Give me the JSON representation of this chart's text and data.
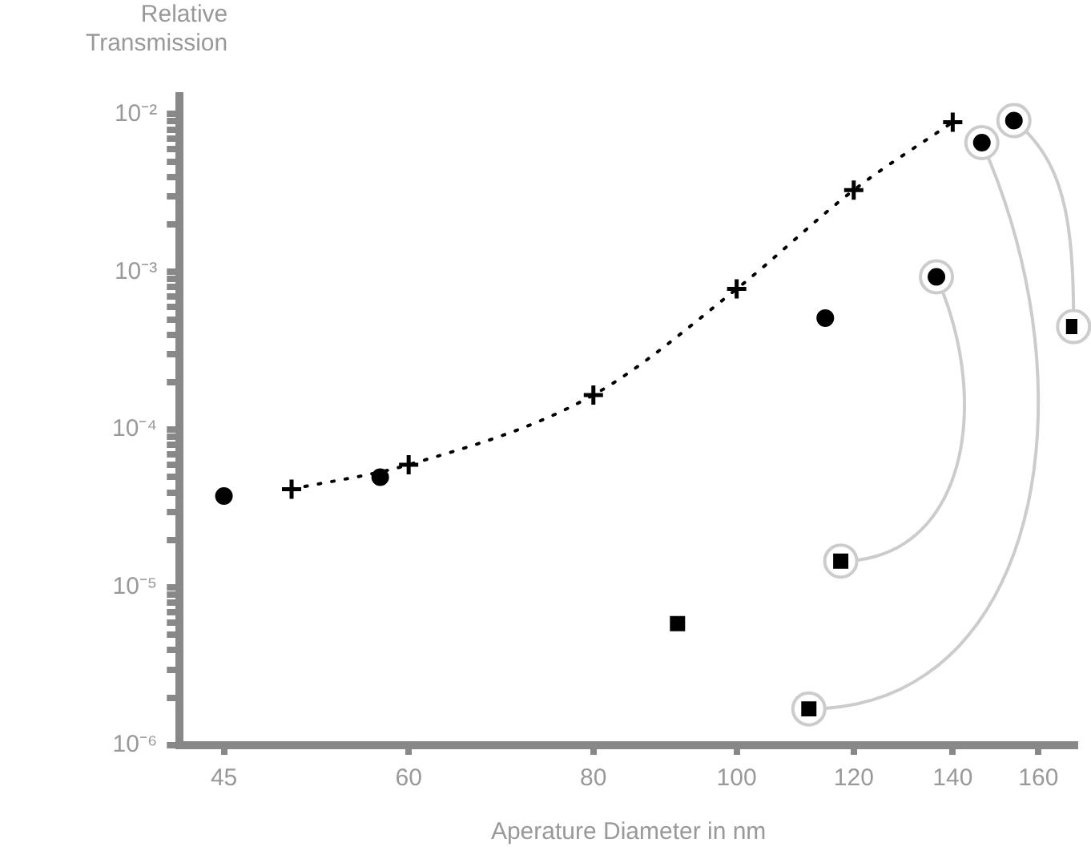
{
  "chart_data": {
    "type": "scatter",
    "xlabel": "Aperature Diameter in nm",
    "ylabel": "Relative Transmission",
    "log": "xy",
    "grid": false,
    "legend": false,
    "xlim": [
      42,
      170
    ],
    "xticks": [
      45,
      60,
      80,
      100,
      120,
      140,
      160
    ],
    "ylim": [
      1e-06,
      0.013
    ],
    "yticks": [
      {
        "value": 1e-06,
        "label": "10⁻⁶"
      },
      {
        "value": 2e-06,
        "label": null
      },
      {
        "value": 3e-06,
        "label": null
      },
      {
        "value": 4e-06,
        "label": null
      },
      {
        "value": 5e-06,
        "label": null
      },
      {
        "value": 6e-06,
        "label": null
      },
      {
        "value": 7e-06,
        "label": null
      },
      {
        "value": 8e-06,
        "label": null
      },
      {
        "value": 9e-06,
        "label": null
      },
      {
        "value": 1e-05,
        "label": "10⁻⁵"
      },
      {
        "value": 2e-05,
        "label": null
      },
      {
        "value": 3e-05,
        "label": null
      },
      {
        "value": 4e-05,
        "label": null
      },
      {
        "value": 5e-05,
        "label": null
      },
      {
        "value": 6e-05,
        "label": null
      },
      {
        "value": 7e-05,
        "label": null
      },
      {
        "value": 8e-05,
        "label": null
      },
      {
        "value": 9e-05,
        "label": null
      },
      {
        "value": 0.0001,
        "label": "10⁻⁴"
      },
      {
        "value": 0.0002,
        "label": null
      },
      {
        "value": 0.0003,
        "label": null
      },
      {
        "value": 0.0004,
        "label": null
      },
      {
        "value": 0.0005,
        "label": null
      },
      {
        "value": 0.0006,
        "label": null
      },
      {
        "value": 0.0007,
        "label": null
      },
      {
        "value": 0.0008,
        "label": null
      },
      {
        "value": 0.0009,
        "label": null
      },
      {
        "value": 0.001,
        "label": "10⁻³"
      },
      {
        "value": 0.002,
        "label": null
      },
      {
        "value": 0.003,
        "label": null
      },
      {
        "value": 0.004,
        "label": null
      },
      {
        "value": 0.005,
        "label": null
      },
      {
        "value": 0.006,
        "label": null
      },
      {
        "value": 0.007,
        "label": null
      },
      {
        "value": 0.008,
        "label": null
      },
      {
        "value": 0.009,
        "label": null
      },
      {
        "value": 0.01,
        "label": "10⁻²"
      }
    ],
    "series": [
      {
        "type": "line",
        "color": "#000000",
        "marker": "cross",
        "line_style": "dotted",
        "x": [
          50,
          60,
          80,
          100,
          120,
          140
        ],
        "values": [
          4.2e-05,
          6e-05,
          0.000166,
          0.00078,
          0.0033,
          0.0089
        ]
      },
      {
        "type": "scatter",
        "color": "#000000",
        "marker": "circle",
        "x": [
          45,
          57.4,
          114.8,
          136.5,
          146.5,
          154
        ],
        "values": [
          3.8e-05,
          5e-05,
          0.00051,
          0.00093,
          0.0066,
          0.0091
        ]
      },
      {
        "type": "scatter",
        "color": "#000000",
        "marker": "square",
        "x": [
          91.2,
          117.6,
          111.9,
          169
        ],
        "values": [
          5.9e-06,
          1.47e-05,
          1.7e-06,
          0.00045
        ]
      }
    ]
  }
}
